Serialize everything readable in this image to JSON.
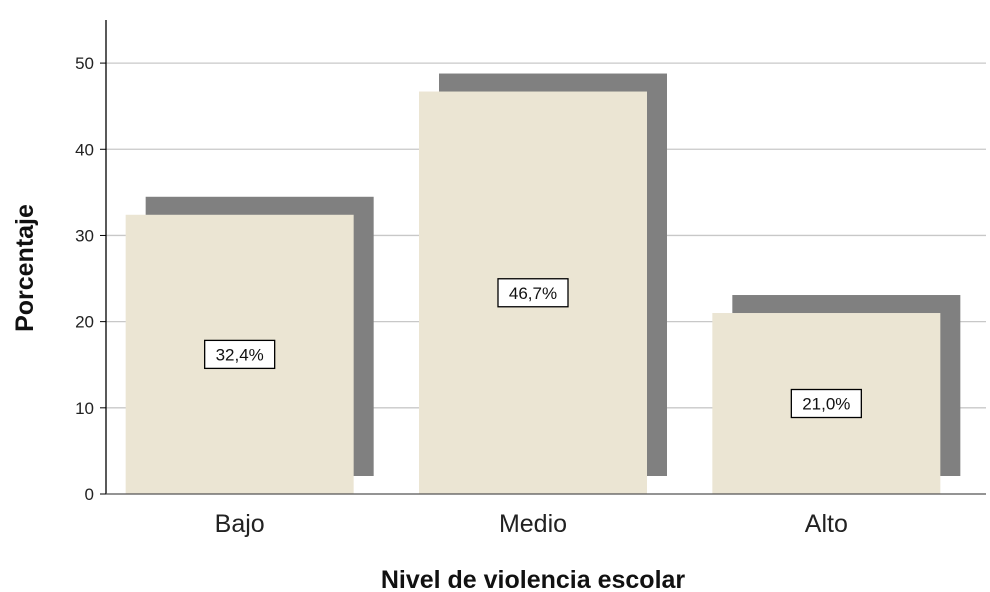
{
  "chart_data": {
    "type": "bar",
    "title": "",
    "xlabel": "Nivel de violencia escolar",
    "ylabel": "Porcentaje",
    "categories": [
      "Bajo",
      "Medio",
      "Alto"
    ],
    "values": [
      32.4,
      46.7,
      21.0
    ],
    "data_labels": [
      "32,4%",
      "46,7%",
      "21,0%"
    ],
    "ylim": [
      0,
      55
    ],
    "yticks": [
      0,
      10,
      20,
      30,
      40,
      50
    ],
    "grid": true,
    "legend": "none",
    "shadow": true,
    "colors": {
      "bar": "#ebe5d3",
      "shadow": "#808080",
      "grid": "#c8c8c8",
      "axis": "#000000",
      "label_box_border": "#000000",
      "label_box_fill": "#ffffff"
    }
  }
}
